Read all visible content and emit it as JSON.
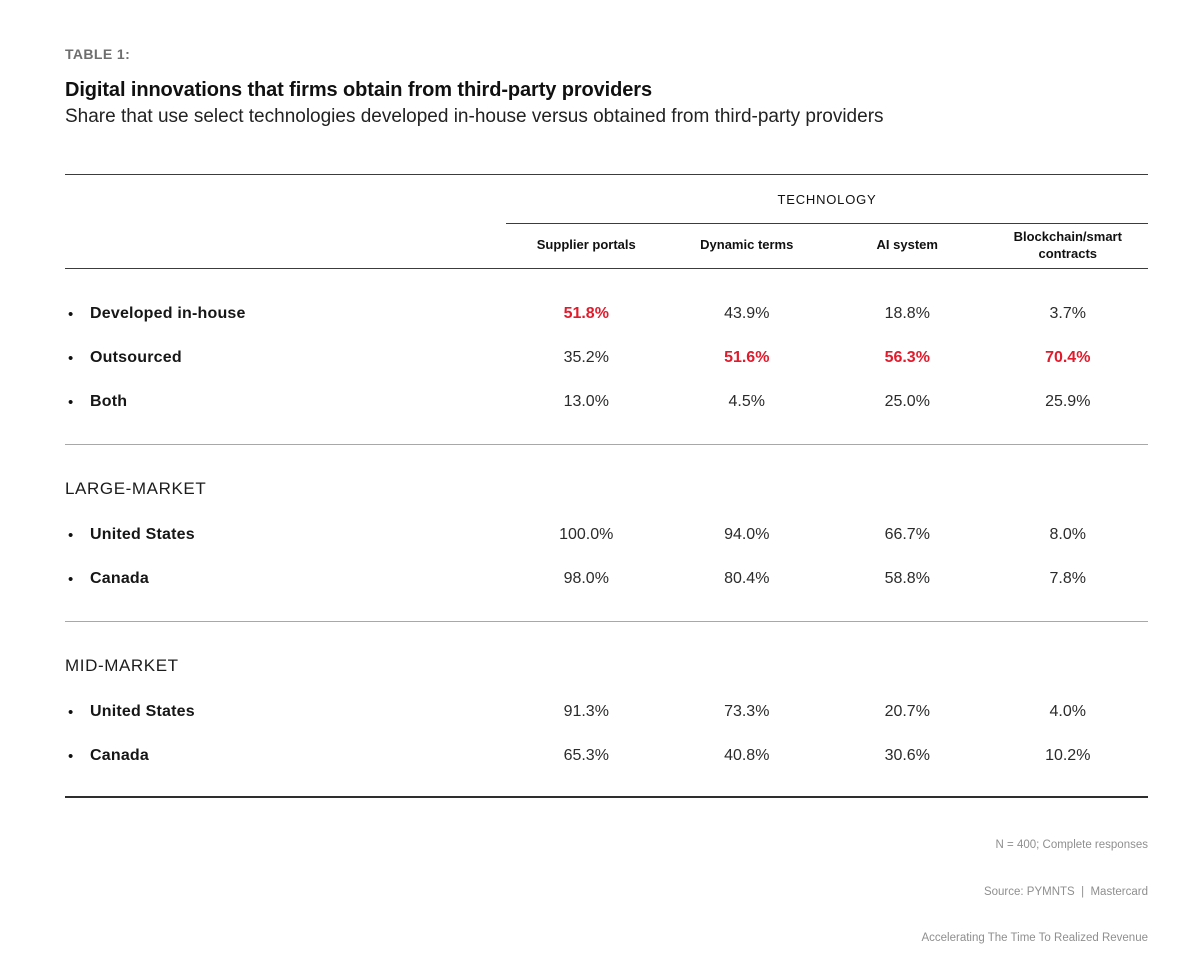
{
  "table_label": "TABLE 1:",
  "title": "Digital innovations that firms obtain from third-party providers",
  "subtitle": "Share that use select technologies developed in-house versus obtained from third-party providers",
  "group_header": "TECHNOLOGY",
  "columns": [
    "Supplier portals",
    "Dynamic terms",
    "AI system",
    "Blockchain/smart contracts"
  ],
  "bullet_glyph": "•",
  "sections": [
    {
      "rows": [
        {
          "label": "Developed in-house",
          "values": [
            "51.8%",
            "43.9%",
            "18.8%",
            "3.7%"
          ]
        },
        {
          "label": "Outsourced",
          "values": [
            "35.2%",
            "51.6%",
            "56.3%",
            "70.4%"
          ]
        },
        {
          "label": "Both",
          "values": [
            "13.0%",
            "4.5%",
            "25.0%",
            "25.9%"
          ]
        }
      ]
    },
    {
      "heading": "LARGE-MARKET",
      "rows": [
        {
          "label": "United States",
          "values": [
            "100.0%",
            "94.0%",
            "66.7%",
            "8.0%"
          ]
        },
        {
          "label": "Canada",
          "values": [
            "98.0%",
            "80.4%",
            "58.8%",
            "7.8%"
          ]
        }
      ]
    },
    {
      "heading": "MID-MARKET",
      "rows": [
        {
          "label": "United States",
          "values": [
            "91.3%",
            "73.3%",
            "20.7%",
            "4.0%"
          ]
        },
        {
          "label": "Canada",
          "values": [
            "65.3%",
            "40.8%",
            "30.6%",
            "10.2%"
          ]
        }
      ]
    }
  ],
  "footer": {
    "line1": "N = 400; Complete responses",
    "line2": "Source: PYMNTS  |  Mastercard",
    "line3": "Accelerating The Time To Realized Revenue"
  },
  "colors": {
    "accent_red": "#e11b2c",
    "rule_dark": "#3c3c3c",
    "rule_light": "#a8a8a8",
    "label_gray": "#6e6e6e",
    "footer_gray": "#8f8f8f"
  },
  "chart_data": {
    "type": "table",
    "title": "Digital innovations that firms obtain from third-party providers",
    "subtitle": "Share that use select technologies developed in-house versus obtained from third-party providers",
    "column_group": "TECHNOLOGY",
    "columns": [
      "Supplier portals",
      "Dynamic terms",
      "AI system",
      "Blockchain/smart contracts"
    ],
    "rows": [
      {
        "section": "",
        "label": "Developed in-house",
        "values_pct": [
          51.8,
          43.9,
          18.8,
          3.7
        ],
        "highlighted_cols": [
          0
        ]
      },
      {
        "section": "",
        "label": "Outsourced",
        "values_pct": [
          35.2,
          51.6,
          56.3,
          70.4
        ],
        "highlighted_cols": [
          1,
          2,
          3
        ]
      },
      {
        "section": "",
        "label": "Both",
        "values_pct": [
          13.0,
          4.5,
          25.0,
          25.9
        ],
        "highlighted_cols": []
      },
      {
        "section": "LARGE-MARKET",
        "label": "United States",
        "values_pct": [
          100.0,
          94.0,
          66.7,
          8.0
        ],
        "highlighted_cols": []
      },
      {
        "section": "LARGE-MARKET",
        "label": "Canada",
        "values_pct": [
          98.0,
          80.4,
          58.8,
          7.8
        ],
        "highlighted_cols": []
      },
      {
        "section": "MID-MARKET",
        "label": "United States",
        "values_pct": [
          91.3,
          73.3,
          20.7,
          4.0
        ],
        "highlighted_cols": []
      },
      {
        "section": "MID-MARKET",
        "label": "Canada",
        "values_pct": [
          65.3,
          40.8,
          30.6,
          10.2
        ],
        "highlighted_cols": []
      }
    ],
    "notes": [
      "N = 400; Complete responses",
      "Source: PYMNTS | Mastercard",
      "Accelerating The Time To Realized Revenue"
    ]
  }
}
